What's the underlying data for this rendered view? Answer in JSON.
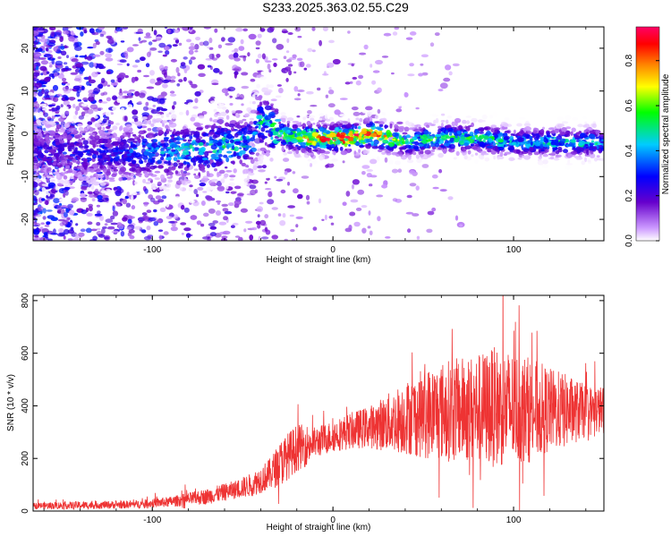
{
  "title": "S233.2025.363.02.55.C29",
  "chart_data": [
    {
      "type": "heatmap",
      "xlabel": "Height of straight line (km)",
      "ylabel": "Frequency (Hz)",
      "xlim": [
        -166,
        150
      ],
      "ylim": [
        -25,
        25
      ],
      "x_ticks": [
        -100,
        0,
        100
      ],
      "y_ticks": [
        -20,
        -10,
        0,
        10,
        20
      ],
      "ridge": {
        "description_points_x": [
          -150,
          -120,
          -100,
          -80,
          -60,
          -45,
          -40,
          -30,
          -20,
          -10,
          0,
          10,
          20,
          30,
          40,
          60,
          80,
          100,
          120,
          150
        ],
        "center_freq_hz": [
          -4,
          -5,
          -4,
          -4,
          -3,
          -2,
          3,
          0,
          -1,
          -1,
          -1,
          -1,
          0,
          -1,
          -2,
          -1,
          -1,
          -2,
          -2,
          -2
        ],
        "peak_amplitude": [
          0.25,
          0.3,
          0.4,
          0.45,
          0.5,
          0.45,
          0.5,
          0.55,
          0.7,
          0.8,
          0.85,
          0.9,
          0.85,
          0.8,
          0.5,
          0.55,
          0.55,
          0.45,
          0.5,
          0.45
        ]
      },
      "colorbar": {
        "label": "Normalized spectral amplitude",
        "range": [
          0,
          0.95
        ],
        "ticks": [
          "0.0",
          "0.2",
          "0.4",
          "0.6",
          "0.8"
        ],
        "tick_values": [
          0,
          0.2,
          0.4,
          0.6,
          0.8
        ]
      }
    },
    {
      "type": "line",
      "xlabel": "Height of straight line (km)",
      "ylabel": "SNR (10 * v/v)",
      "xlim": [
        -166,
        150
      ],
      "ylim": [
        0,
        820
      ],
      "x_ticks": [
        -100,
        0,
        100
      ],
      "y_ticks": [
        0,
        200,
        400,
        600,
        800
      ],
      "series": [
        {
          "name": "SNR",
          "color": "#ee3333",
          "envelope_x": [
            -166,
            -140,
            -110,
            -90,
            -70,
            -55,
            -45,
            -35,
            -28,
            -20,
            -15,
            -10,
            0,
            10,
            20,
            30,
            40,
            50,
            60,
            70,
            80,
            90,
            100,
            110,
            120,
            130,
            140,
            150
          ],
          "envelope_mean": [
            20,
            22,
            25,
            35,
            55,
            80,
            100,
            140,
            190,
            240,
            250,
            260,
            285,
            305,
            320,
            335,
            355,
            370,
            380,
            385,
            390,
            395,
            390,
            385,
            385,
            380,
            380,
            385
          ],
          "envelope_spread": [
            12,
            15,
            15,
            20,
            30,
            35,
            45,
            60,
            90,
            90,
            80,
            60,
            60,
            70,
            80,
            110,
            140,
            170,
            190,
            200,
            210,
            230,
            220,
            200,
            160,
            140,
            100,
            90
          ]
        }
      ]
    }
  ]
}
